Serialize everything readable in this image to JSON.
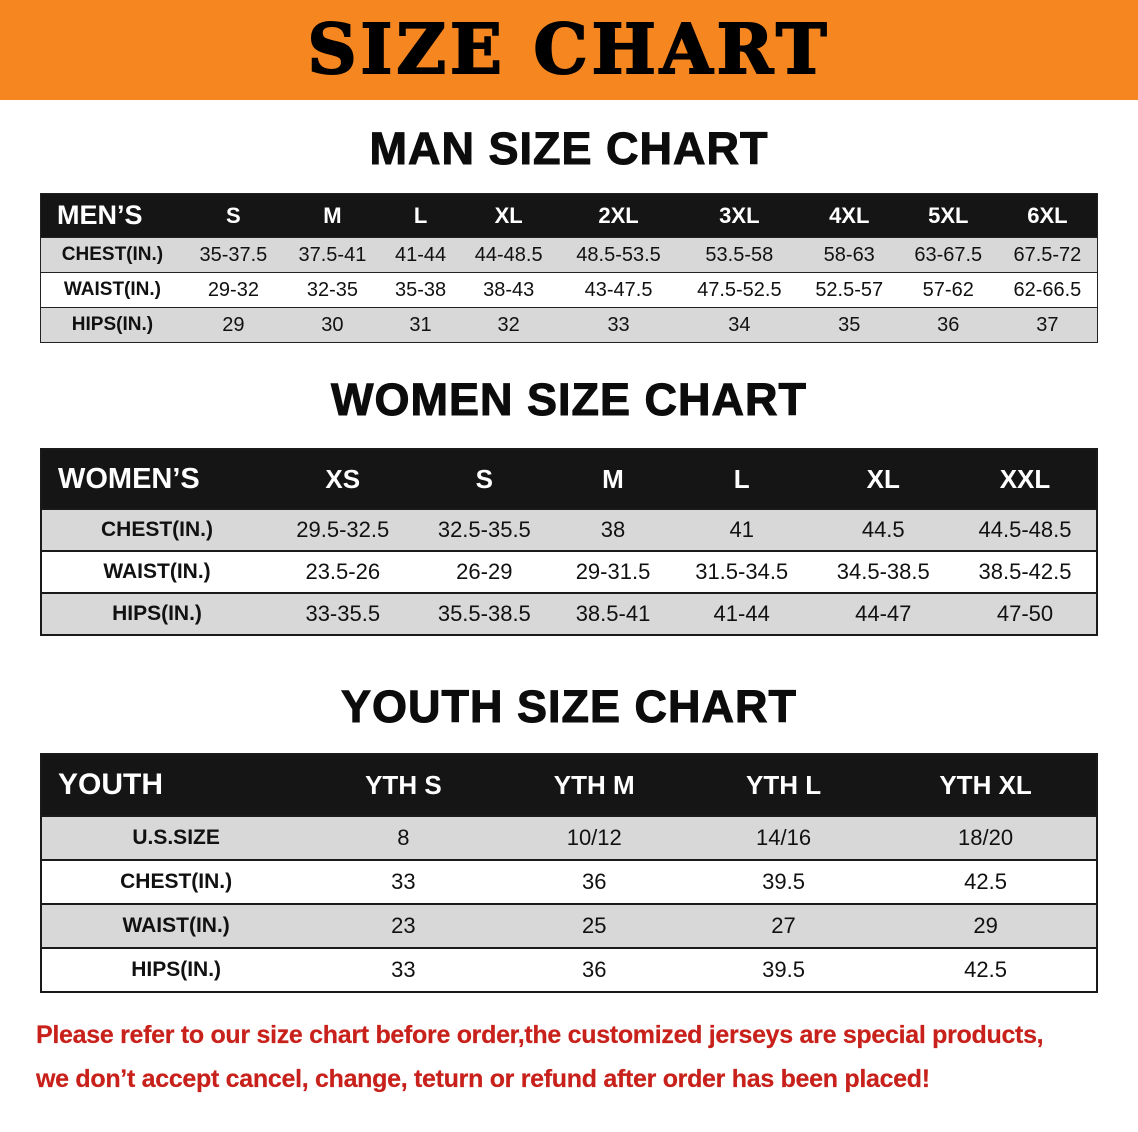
{
  "banner": {
    "title": "SIZE CHART"
  },
  "men": {
    "heading": "MAN SIZE CHART",
    "table": {
      "header": [
        "MEN’S",
        "S",
        "M",
        "L",
        "XL",
        "2XL",
        "3XL",
        "4XL",
        "5XL",
        "6XL"
      ],
      "rows": [
        [
          "CHEST(IN.)",
          "35-37.5",
          "37.5-41",
          "41-44",
          "44-48.5",
          "48.5-53.5",
          "53.5-58",
          "58-63",
          "63-67.5",
          "67.5-72"
        ],
        [
          "WAIST(IN.)",
          "29-32",
          "32-35",
          "35-38",
          "38-43",
          "43-47.5",
          "47.5-52.5",
          "52.5-57",
          "57-62",
          "62-66.5"
        ],
        [
          "HIPS(IN.)",
          "29",
          "30",
          "31",
          "32",
          "33",
          "34",
          "35",
          "36",
          "37"
        ]
      ]
    }
  },
  "women": {
    "heading": "WOMEN SIZE CHART",
    "table": {
      "header": [
        "WOMEN’S",
        "XS",
        "S",
        "M",
        "L",
        "XL",
        "XXL"
      ],
      "rows": [
        [
          "CHEST(IN.)",
          "29.5-32.5",
          "32.5-35.5",
          "38",
          "41",
          "44.5",
          "44.5-48.5"
        ],
        [
          "WAIST(IN.)",
          "23.5-26",
          "26-29",
          "29-31.5",
          "31.5-34.5",
          "34.5-38.5",
          "38.5-42.5"
        ],
        [
          "HIPS(IN.)",
          "33-35.5",
          "35.5-38.5",
          "38.5-41",
          "41-44",
          "44-47",
          "47-50"
        ]
      ]
    }
  },
  "youth": {
    "heading": "YOUTH SIZE CHART",
    "table": {
      "header": [
        "YOUTH",
        "YTH S",
        "YTH M",
        "YTH L",
        "YTH XL"
      ],
      "rows": [
        [
          "U.S.SIZE",
          "8",
          "10/12",
          "14/16",
          "18/20"
        ],
        [
          "CHEST(IN.)",
          "33",
          "36",
          "39.5",
          "42.5"
        ],
        [
          "WAIST(IN.)",
          "23",
          "25",
          "27",
          "29"
        ],
        [
          "HIPS(IN.)",
          "33",
          "36",
          "39.5",
          "42.5"
        ]
      ]
    }
  },
  "footer": {
    "line1": "Please refer to our size chart before order,the customized jerseys are special products,",
    "line2": "we don’t accept cancel, change, teturn or refund after order has been placed!"
  },
  "colors": {
    "banner_bg": "#F6861F",
    "table_header_bg": "#151515",
    "row_stripe": "#D8D8D8",
    "notice_text": "#C8201A"
  }
}
